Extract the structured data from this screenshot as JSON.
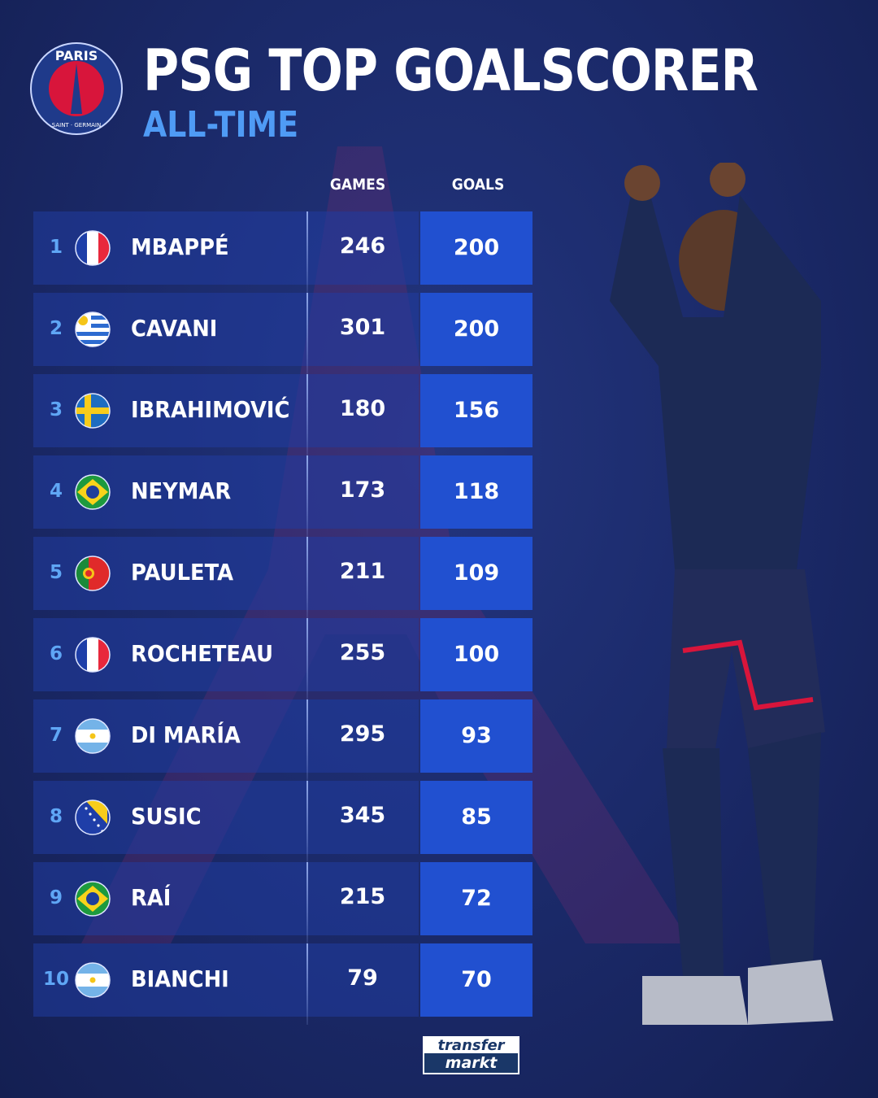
{
  "header": {
    "title": "PSG TOP GOALSCORER",
    "subtitle": "ALL-TIME",
    "logo_text": "PARIS SAINT-GERMAIN"
  },
  "columns": {
    "games": "GAMES",
    "goals": "GOALS"
  },
  "colors": {
    "accent": "#4f9bf5",
    "goals_box": "#2150d0",
    "background": "#1b2a6a"
  },
  "rows": [
    {
      "rank": "1",
      "flag": "france",
      "name": "MBAPPÉ",
      "games": "246",
      "goals": "200"
    },
    {
      "rank": "2",
      "flag": "uruguay",
      "name": "CAVANI",
      "games": "301",
      "goals": "200"
    },
    {
      "rank": "3",
      "flag": "sweden",
      "name": "IBRAHIMOVIĆ",
      "games": "180",
      "goals": "156"
    },
    {
      "rank": "4",
      "flag": "brazil",
      "name": "NEYMAR",
      "games": "173",
      "goals": "118"
    },
    {
      "rank": "5",
      "flag": "portugal",
      "name": "PAULETA",
      "games": "211",
      "goals": "109"
    },
    {
      "rank": "6",
      "flag": "france",
      "name": "ROCHETEAU",
      "games": "255",
      "goals": "100"
    },
    {
      "rank": "7",
      "flag": "argentina",
      "name": "DI MARÍA",
      "games": "295",
      "goals": "93"
    },
    {
      "rank": "8",
      "flag": "bosnia",
      "name": "SUSIC",
      "games": "345",
      "goals": "85"
    },
    {
      "rank": "9",
      "flag": "brazil",
      "name": "RAÍ",
      "games": "215",
      "goals": "72"
    },
    {
      "rank": "10",
      "flag": "argentina",
      "name": "BIANCHI",
      "games": "79",
      "goals": "70"
    }
  ],
  "footer": {
    "brand_top": "transfer",
    "brand_bottom": "markt"
  }
}
